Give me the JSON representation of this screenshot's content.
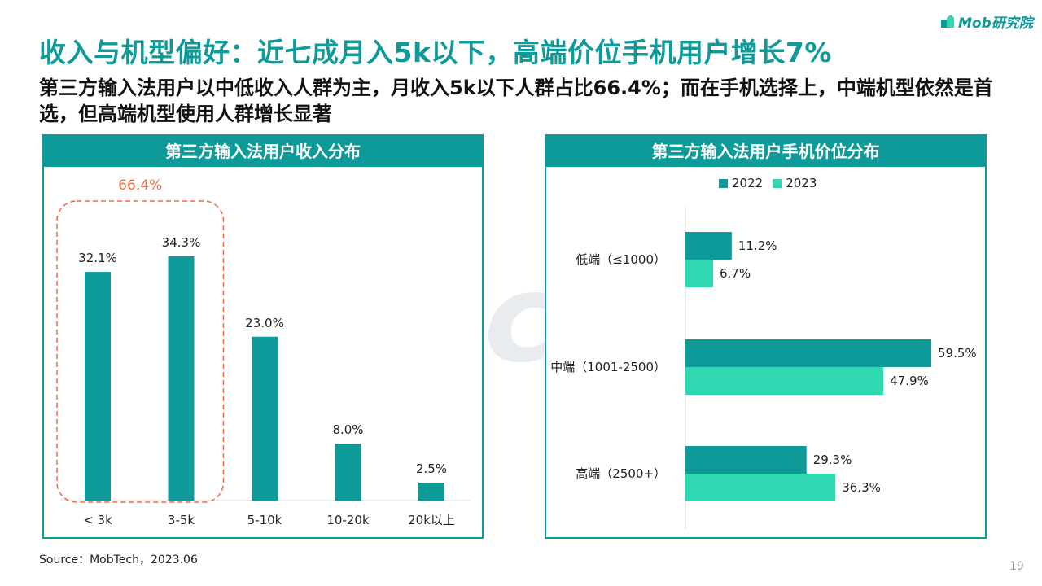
{
  "header": {
    "title": "收入与机型偏好：近七成月入5k以下，高端价位手机用户增长7%",
    "subtitle": "第三方输入法用户以中低收入人群为主，月收入5k以下人群占比66.4%；而在手机选择上，中端机型依然是首选，但高端机型使用人群增长显著",
    "logo_text": "Mob研究院"
  },
  "watermark": "MobTech 袤博",
  "source": "Source：MobTech，2023.06",
  "page_number": "19",
  "colors": {
    "teal": "#0e9a98",
    "mint": "#2fd8b0",
    "highlight": "#f26b3a"
  },
  "chart_data": [
    {
      "type": "bar",
      "title": "第三方输入法用户收入分布",
      "categories": [
        "< 3k",
        "3-5k",
        "5-10k",
        "10-20k",
        "20k以上"
      ],
      "values": [
        32.1,
        34.3,
        23.0,
        8.0,
        2.5
      ],
      "value_labels": [
        "32.1%",
        "34.3%",
        "23.0%",
        "8.0%",
        "2.5%"
      ],
      "ylim": [
        0,
        40
      ],
      "grid": false,
      "annotation": {
        "text": "66.4%",
        "covers": [
          "< 3k",
          "3-5k"
        ]
      }
    },
    {
      "type": "bar",
      "orientation": "horizontal",
      "title": "第三方输入法用户手机价位分布",
      "categories": [
        "低端（≤1000）",
        "中端（1001-2500）",
        "高端（2500+）"
      ],
      "series": [
        {
          "name": "2022",
          "values": [
            11.2,
            59.5,
            29.3
          ],
          "labels": [
            "11.2%",
            "59.5%",
            "29.3%"
          ],
          "color": "#0e9a98"
        },
        {
          "name": "2023",
          "values": [
            6.7,
            47.9,
            36.3
          ],
          "labels": [
            "6.7%",
            "47.9%",
            "36.3%"
          ],
          "color": "#2fd8b0"
        }
      ],
      "xlim": [
        0,
        60
      ],
      "legend": "top",
      "grid": false
    }
  ]
}
